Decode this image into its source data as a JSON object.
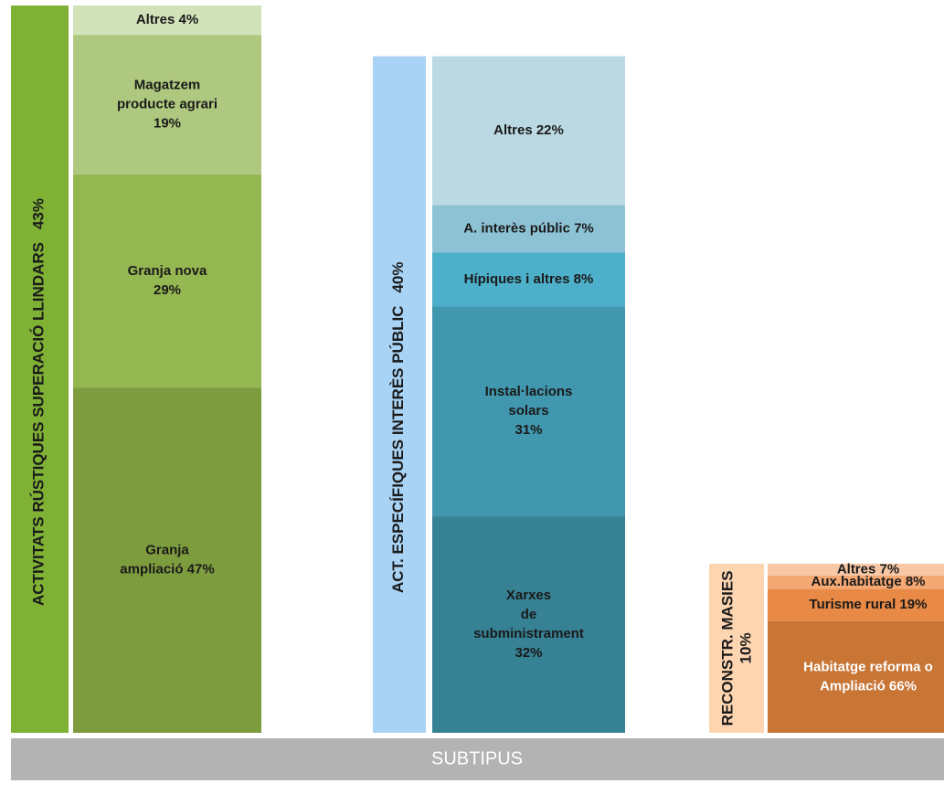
{
  "chart_data": {
    "type": "mosaic",
    "footer": "SUBTIPUS",
    "groups": [
      {
        "name": "ACTIVITATS RÚSTIQUES SUPERACIÓ LLINDARS",
        "value": 43,
        "value_label": "43%",
        "color": "#7fb135",
        "percent_on_new_line": false,
        "segments": [
          {
            "label": [
              "Altres 4%"
            ],
            "value": 4,
            "color": "#d2e2b9"
          },
          {
            "label": [
              "Magatzem",
              "producte agrari",
              "19%"
            ],
            "value": 19,
            "color": "#aec97f"
          },
          {
            "label": [
              "Granja nova",
              "29%"
            ],
            "value": 29,
            "color": "#94b752"
          },
          {
            "label": [
              "Granja",
              "ampliació 47%"
            ],
            "value": 47,
            "color": "#7d9c3e"
          }
        ]
      },
      {
        "name": "ACT. ESPECÍFIQUES INTERÈS  PÚBLIC",
        "value": 40,
        "value_label": "40%",
        "color": "#a9d3f5",
        "percent_on_new_line": false,
        "segments": [
          {
            "label": [
              "Altres 22%"
            ],
            "value": 22,
            "color": "#bad9e2"
          },
          {
            "label": [
              "A. interès públic 7%"
            ],
            "value": 7,
            "color": "#8cc2d3"
          },
          {
            "label": [
              "Hípiques i altres 8%"
            ],
            "value": 8,
            "color": "#4dafc9"
          },
          {
            "label": [
              "Instal·lacions",
              "solars",
              "31%"
            ],
            "value": 31,
            "color": "#4197ad"
          },
          {
            "label": [
              "Xarxes",
              "de",
              "subministrament",
              "32%"
            ],
            "value": 32,
            "color": "#378194"
          }
        ]
      },
      {
        "name": "RECONSTR. MASIES",
        "value": 10,
        "value_label": "10%",
        "color": "#fdd5b1",
        "percent_on_new_line": true,
        "segments": [
          {
            "label": [
              "Altres 7%"
            ],
            "value": 7,
            "color": "#f7c7a6"
          },
          {
            "label": [
              "Aux.habitatge 8%"
            ],
            "value": 8,
            "color": "#f4a873"
          },
          {
            "label": [
              "Turisme rural 19%"
            ],
            "value": 19,
            "color": "#e88a45"
          },
          {
            "label": [
              "Habitatge reforma o",
              "Ampliació 66%"
            ],
            "value": 66,
            "color": "#c87535",
            "label_color": "#ffffff"
          }
        ]
      }
    ]
  }
}
